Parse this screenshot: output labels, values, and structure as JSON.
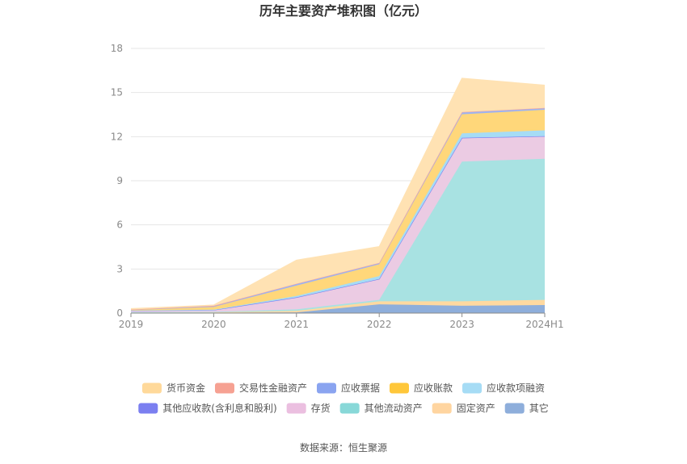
{
  "chart_data": {
    "type": "area",
    "stacked": true,
    "title": "历年主要资产堆积图（亿元）",
    "categories": [
      "2019",
      "2020",
      "2021",
      "2022",
      "2023",
      "2024H1"
    ],
    "ylim": [
      0,
      18
    ],
    "yticks": [
      0,
      3,
      6,
      9,
      12,
      15,
      18
    ],
    "grid": true,
    "legend_position": "bottom",
    "series": [
      {
        "name": "其它",
        "color": "#8eaedb",
        "values": [
          0.02,
          0.03,
          0.05,
          0.6,
          0.5,
          0.55
        ]
      },
      {
        "name": "固定资产",
        "color": "#ffd9a0",
        "values": [
          0.02,
          0.02,
          0.1,
          0.2,
          0.3,
          0.35
        ]
      },
      {
        "name": "其他流动资产",
        "color": "#a8e2e2",
        "values": [
          0.02,
          0.03,
          0.1,
          0.1,
          9.5,
          9.6
        ]
      },
      {
        "name": "存货",
        "color": "#ebcbe3",
        "values": [
          0.1,
          0.12,
          0.8,
          1.4,
          1.6,
          1.5
        ]
      },
      {
        "name": "其他应收款(含利息和股利)",
        "color": "#7b7ff0",
        "values": [
          0.01,
          0.01,
          0.02,
          0.02,
          0.02,
          0.03
        ]
      },
      {
        "name": "应收款项融资",
        "color": "#a6dcf5",
        "values": [
          0.01,
          0.02,
          0.1,
          0.2,
          0.3,
          0.4
        ]
      },
      {
        "name": "应收账款",
        "color": "#ffd77a",
        "values": [
          0.05,
          0.2,
          0.7,
          0.8,
          1.3,
          1.4
        ]
      },
      {
        "name": "应收票据",
        "color": "#9db3f2",
        "values": [
          0.01,
          0.02,
          0.13,
          0.1,
          0.15,
          0.12
        ]
      },
      {
        "name": "交易性金融资产",
        "color": "#f7a79a",
        "values": [
          0,
          0.05,
          0,
          0,
          0,
          0
        ]
      },
      {
        "name": "货币资金",
        "color": "#ffe2b3",
        "values": [
          0.06,
          0.05,
          1.6,
          1.1,
          2.3,
          1.55
        ]
      }
    ],
    "legend_order": [
      "货币资金",
      "交易性金融资产",
      "应收票据",
      "应收账款",
      "应收款项融资",
      "其他应收款(含利息和股利)",
      "存货",
      "其他流动资产",
      "固定资产",
      "其它"
    ],
    "legend_colors": {
      "货币资金": "#ffd99a",
      "交易性金融资产": "#f6a192",
      "应收票据": "#8aa4f0",
      "应收账款": "#ffc73a",
      "应收款项融资": "#a6dcf5",
      "其他应收款(含利息和股利)": "#7b7ff0",
      "存货": "#ebbfe0",
      "其他流动资产": "#88d8d8",
      "固定资产": "#ffd5a0",
      "其它": "#8eaedb"
    }
  },
  "source_text": "数据来源：恒生聚源"
}
